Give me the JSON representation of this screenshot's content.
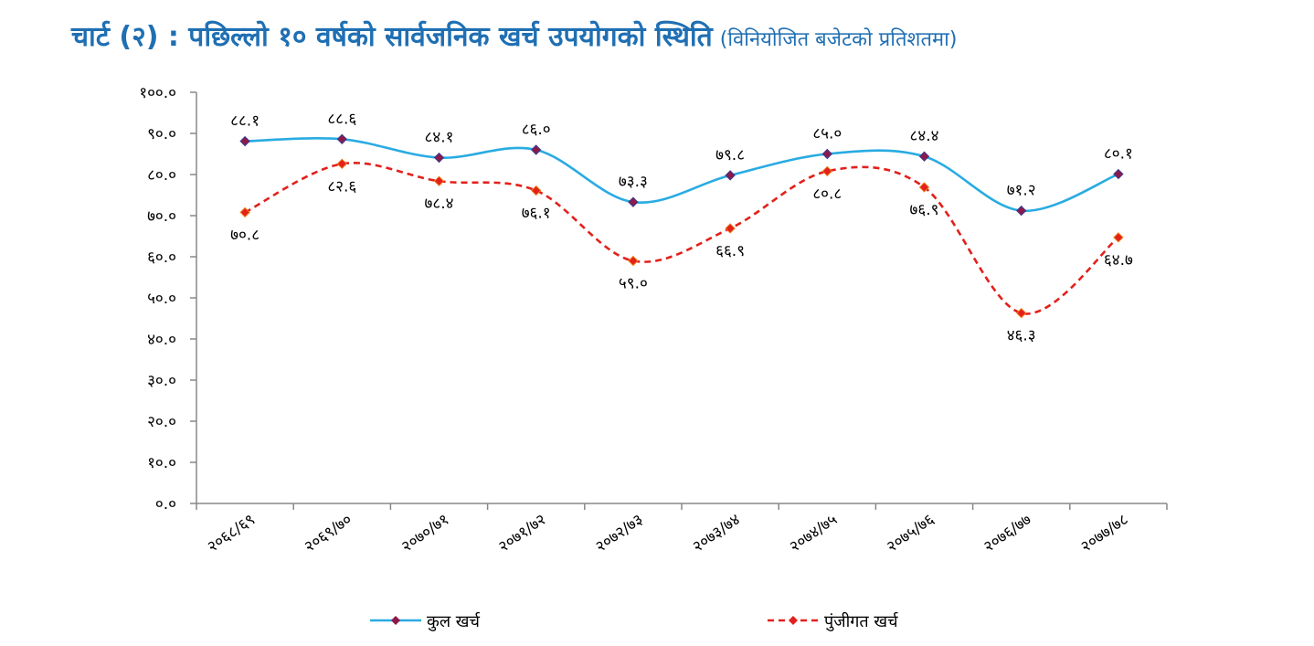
{
  "title": {
    "main": "चार्ट (२) : पछिल्लो १० वर्षको सार्वजनिक खर्च उपयोगको स्थिति",
    "sub": "(विनियोजित बजेटको प्रतिशतमा)"
  },
  "chart_data": {
    "type": "line",
    "categories": [
      "२०६८/६९",
      "२०६९/७०",
      "२०७०/७१",
      "२०७१/७२",
      "२०७२/७३",
      "२०७३/७४",
      "२०७४/७५",
      "२०७५/७६",
      "२०७६/७७",
      "२०७७/७८"
    ],
    "y_ticks": [
      "०.०",
      "१०.०",
      "२०.०",
      "३०.०",
      "४०.०",
      "५०.०",
      "६०.०",
      "७०.०",
      "८०.०",
      "९०.०",
      "१००.०"
    ],
    "ylim": [
      0,
      100
    ],
    "grid": false,
    "legend_position": "bottom",
    "series": [
      {
        "name": "कुल खर्च",
        "color": "#29abe2",
        "marker_color": "#8b1a4a",
        "line_style": "solid",
        "values": [
          88.1,
          88.6,
          84.1,
          86.0,
          73.3,
          79.8,
          85.0,
          84.4,
          71.2,
          80.1
        ],
        "labels": [
          "८८.१",
          "८८.६",
          "८४.१",
          "८६.०",
          "७३.३",
          "७९.८",
          "८५.०",
          "८४.४",
          "७१.२",
          "८०.१"
        ]
      },
      {
        "name": "पुंजीगत खर्च",
        "color": "#e3201b",
        "marker_color": "#e3201b",
        "line_style": "dashed",
        "values": [
          70.8,
          82.6,
          78.4,
          76.1,
          59.0,
          66.9,
          80.8,
          76.9,
          46.3,
          64.7
        ],
        "labels": [
          "७०.८",
          "८२.६",
          "७८.४",
          "७६.१",
          "५९.०",
          "६६.९",
          "८०.८",
          "७६.९",
          "४६.३",
          "६४.७"
        ]
      }
    ]
  }
}
